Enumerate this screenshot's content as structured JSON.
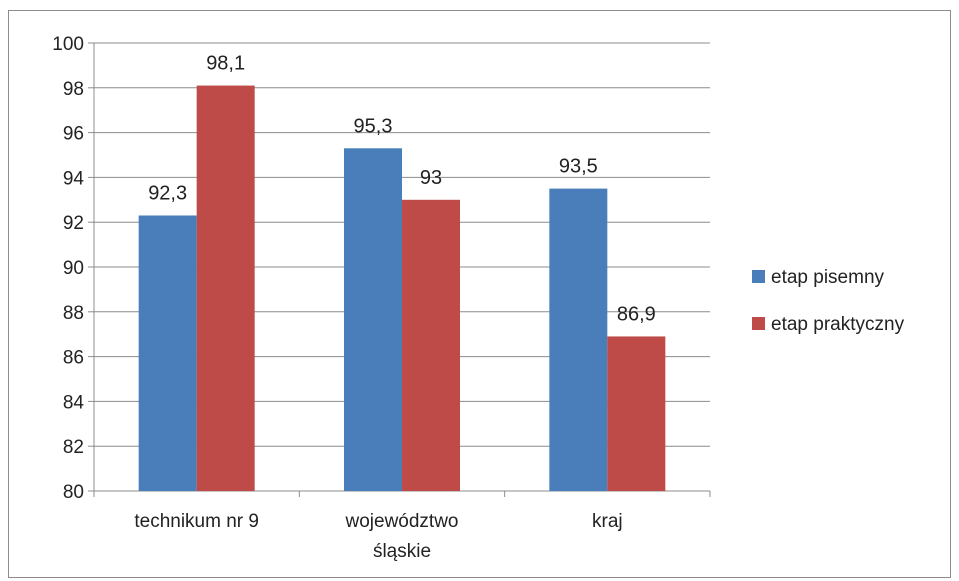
{
  "chart_data": {
    "type": "bar",
    "title": "",
    "xlabel": "",
    "ylabel": "",
    "categories": [
      "technikum nr 9",
      "województwo\nśląskie",
      "kraj"
    ],
    "series": [
      {
        "name": "etap pisemny",
        "color": "#4a7ebb",
        "values": [
          92.3,
          95.3,
          93.5
        ],
        "labels": [
          "92,3",
          "95,3",
          "93,5"
        ]
      },
      {
        "name": "etap praktyczny",
        "color": "#be4b48",
        "values": [
          98.1,
          93,
          86.9
        ],
        "labels": [
          "98,1",
          "93",
          "86,9"
        ]
      }
    ],
    "ylim": [
      80,
      100
    ],
    "yticks": [
      80,
      82,
      84,
      86,
      88,
      90,
      92,
      94,
      96,
      98,
      100
    ],
    "grid": true,
    "legend": "right"
  }
}
